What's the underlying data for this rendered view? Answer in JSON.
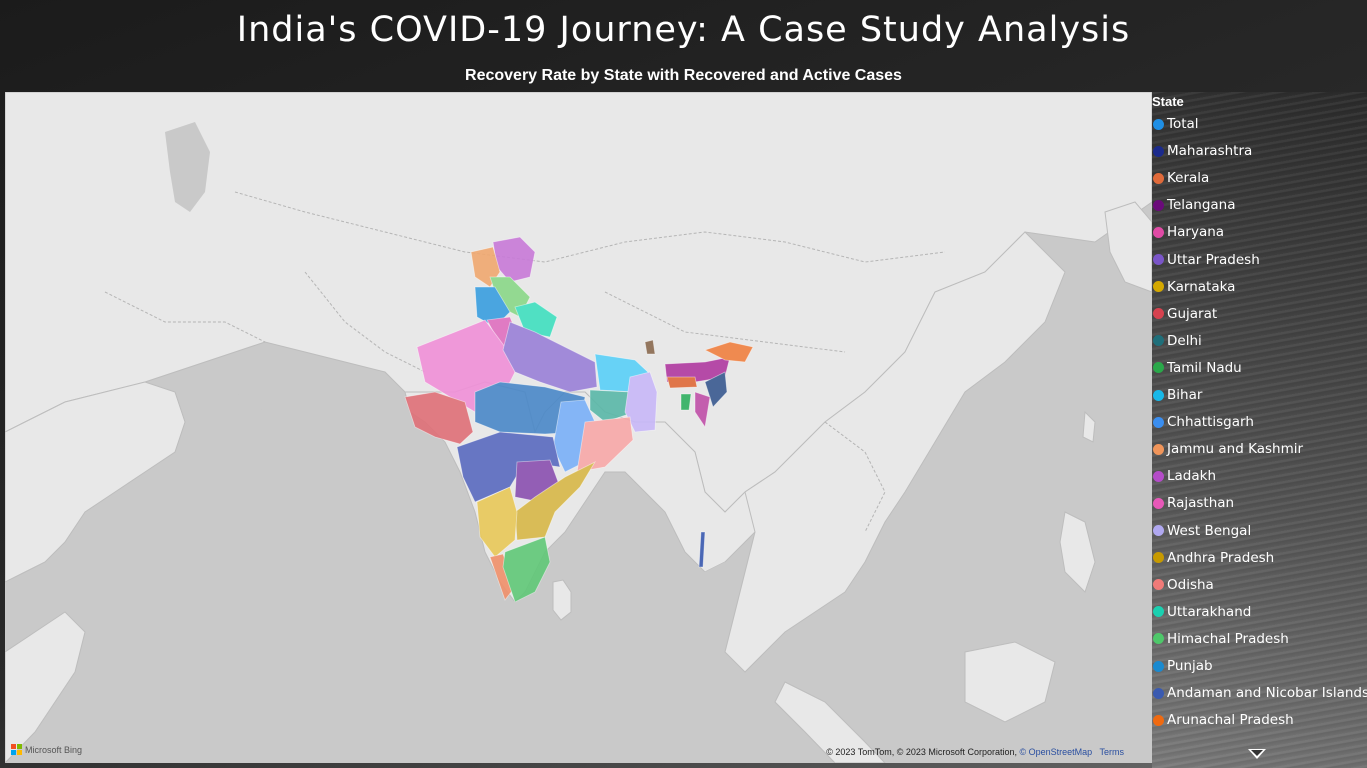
{
  "title": "India's COVID-19 Journey: A Case Study Analysis",
  "subtitle": "Recovery Rate by State with Recovered and Active Cases",
  "map": {
    "provider": "Microsoft Bing",
    "copyright_prefix": "© 2023 TomTom, © 2023 Microsoft Corporation,",
    "copyright_osm": "© OpenStreetMap",
    "copyright_terms": "Terms",
    "land_color": "#e8e8e8",
    "water_color": "#c9c9c9"
  },
  "legend": {
    "title": "State",
    "items": [
      {
        "label": "Total",
        "color": "#1f8fe5"
      },
      {
        "label": "Maharashtra",
        "color": "#1b2a8c"
      },
      {
        "label": "Kerala",
        "color": "#e06a3a"
      },
      {
        "label": "Telangana",
        "color": "#6a0a7a"
      },
      {
        "label": "Haryana",
        "color": "#e04aa5"
      },
      {
        "label": "Uttar Pradesh",
        "color": "#7a55c8"
      },
      {
        "label": "Karnataka",
        "color": "#d4a800"
      },
      {
        "label": "Gujarat",
        "color": "#d6424f"
      },
      {
        "label": "Delhi",
        "color": "#1f6f7a"
      },
      {
        "label": "Tamil Nadu",
        "color": "#2aa84a"
      },
      {
        "label": "Bihar",
        "color": "#18b8e8"
      },
      {
        "label": "Chhattisgarh",
        "color": "#3a8ef0"
      },
      {
        "label": "Jammu and Kashmir",
        "color": "#f0955a"
      },
      {
        "label": "Ladakh",
        "color": "#b44cc8"
      },
      {
        "label": "Rajasthan",
        "color": "#e858b8"
      },
      {
        "label": "West Bengal",
        "color": "#b0a8f0"
      },
      {
        "label": "Andhra Pradesh",
        "color": "#c79a00"
      },
      {
        "label": "Odisha",
        "color": "#f07a78"
      },
      {
        "label": "Uttarakhand",
        "color": "#1ad0b0"
      },
      {
        "label": "Himachal Pradesh",
        "color": "#4ec86a"
      },
      {
        "label": "Punjab",
        "color": "#1a8ad0"
      },
      {
        "label": "Andaman and Nicobar Islands",
        "color": "#3a5ab0"
      },
      {
        "label": "Arunachal Pradesh",
        "color": "#f06a10"
      }
    ]
  }
}
